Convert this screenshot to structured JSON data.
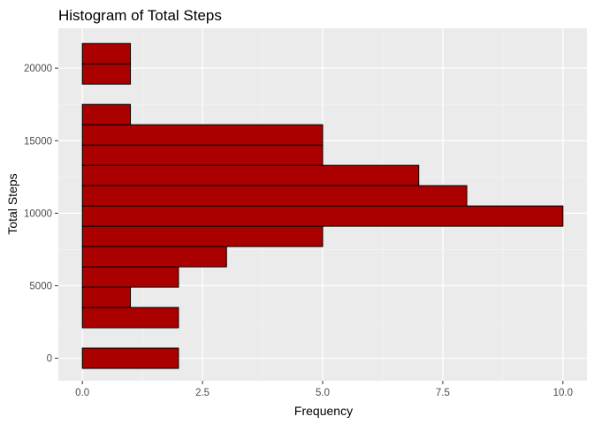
{
  "chart_data": {
    "type": "bar",
    "orientation": "horizontal",
    "title": "Histogram of Total Steps",
    "xlabel": "Frequency",
    "ylabel": "Total Steps",
    "xlim": [
      -0.5,
      10.5
    ],
    "ylim": [
      -1550,
      22750
    ],
    "x_ticks": [
      0,
      2.5,
      5,
      7.5,
      10
    ],
    "x_tick_labels": [
      "0.0",
      "2.5",
      "5.0",
      "7.5",
      "10.0"
    ],
    "y_ticks": [
      0,
      5000,
      10000,
      15000,
      20000
    ],
    "y_tick_labels": [
      "0",
      "5000",
      "10000",
      "15000",
      "20000"
    ],
    "bins": [
      {
        "center": 0,
        "count": 2
      },
      {
        "center": 1400,
        "count": 0
      },
      {
        "center": 2800,
        "count": 2
      },
      {
        "center": 4200,
        "count": 1
      },
      {
        "center": 5600,
        "count": 2
      },
      {
        "center": 7000,
        "count": 3
      },
      {
        "center": 8400,
        "count": 5
      },
      {
        "center": 9800,
        "count": 10
      },
      {
        "center": 11200,
        "count": 8
      },
      {
        "center": 12600,
        "count": 7
      },
      {
        "center": 14000,
        "count": 5
      },
      {
        "center": 15400,
        "count": 5
      },
      {
        "center": 16800,
        "count": 1
      },
      {
        "center": 18200,
        "count": 0
      },
      {
        "center": 19600,
        "count": 1
      },
      {
        "center": 21000,
        "count": 1
      }
    ],
    "bin_width": 1400,
    "fill": "#aa0000",
    "outline": "#000000",
    "panel_background": "#ebebeb",
    "grid": true
  }
}
